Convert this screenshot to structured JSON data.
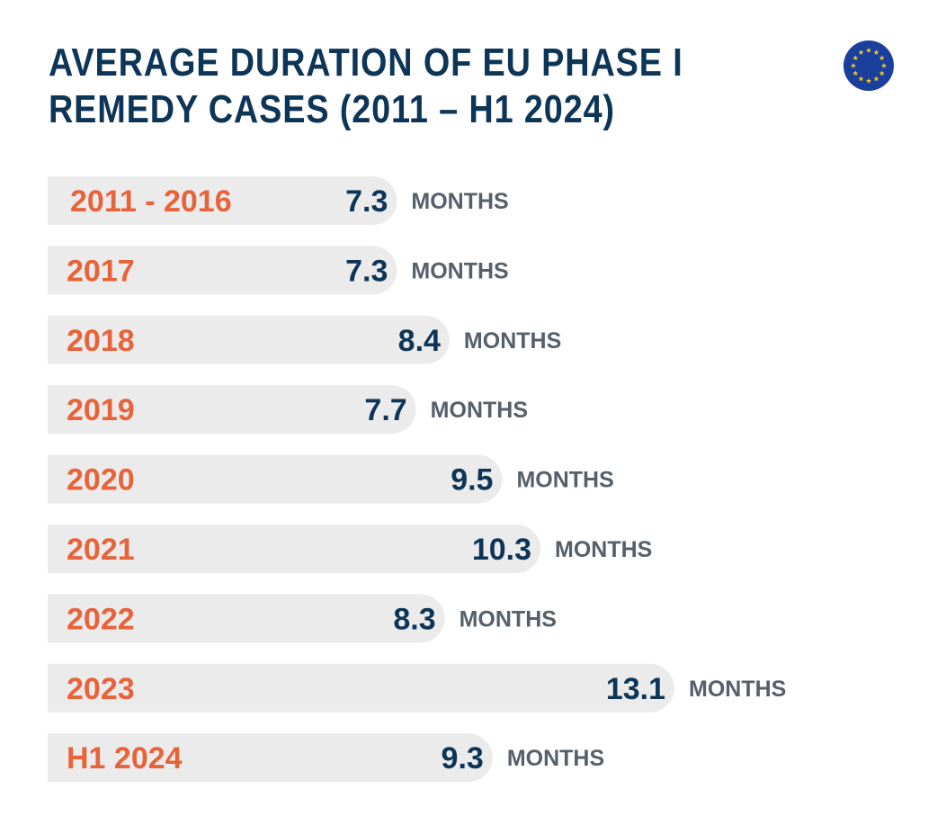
{
  "title_lines": [
    "AVERAGE DURATION OF EU PHASE I",
    "REMEDY CASES (2011 – H1 2024)"
  ],
  "colors": {
    "title": "#0d3558",
    "category": "#e8633a",
    "value": "#0d3558",
    "unit": "#56606b",
    "bar": "#ebebeb",
    "flag_blue": "#1a3f9c",
    "flag_star": "#f7d117"
  },
  "icons": {
    "flag": "eu-flag-icon"
  },
  "chart_data": {
    "type": "bar",
    "orientation": "horizontal",
    "title": "AVERAGE DURATION OF EU PHASE I REMEDY CASES (2011 – H1 2024)",
    "categories": [
      "2011 - 2016",
      "2017",
      "2018",
      "2019",
      "2020",
      "2021",
      "2022",
      "2023",
      "H1 2024"
    ],
    "values": [
      7.3,
      7.3,
      8.4,
      7.7,
      9.5,
      10.3,
      8.3,
      13.1,
      9.3
    ],
    "value_labels": [
      "7.3",
      "7.3",
      "8.4",
      "7.7",
      "9.5",
      "10.3",
      "8.3",
      "13.1",
      "9.3"
    ],
    "unit": "MONTHS",
    "grid": false,
    "legend": "none"
  }
}
